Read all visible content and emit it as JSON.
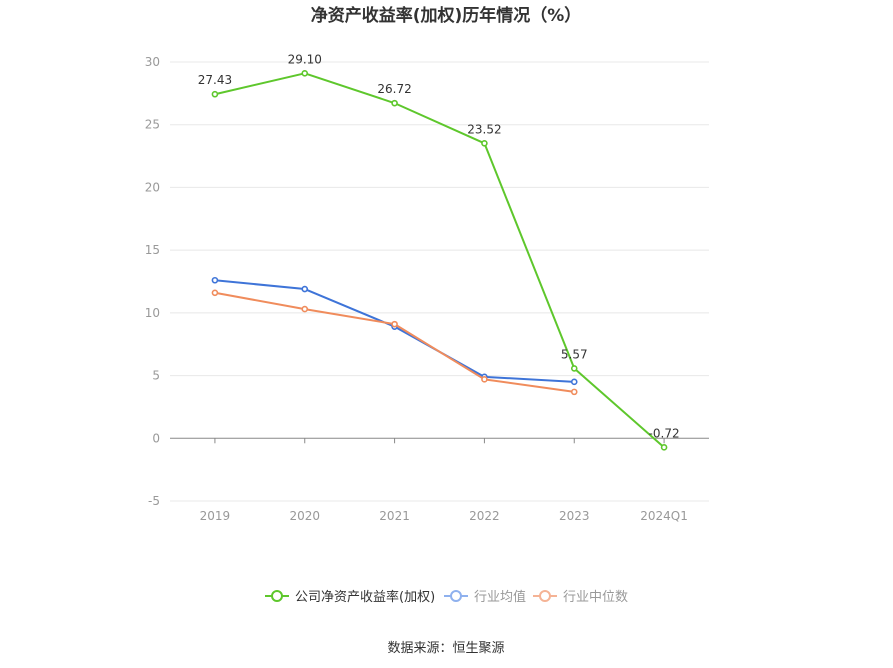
{
  "chart_data": {
    "type": "line",
    "title": "净资产收益率(加权)历年情况（%）",
    "categories": [
      "2019",
      "2020",
      "2021",
      "2022",
      "2023",
      "2024Q1"
    ],
    "ylim": [
      -5,
      30
    ],
    "yticks": [
      -5,
      0,
      5,
      10,
      15,
      20,
      25,
      30
    ],
    "grid": true,
    "legend_position": "bottom",
    "series": [
      {
        "name": "公司净资产收益率(加权)",
        "color": "#5ec72c",
        "values": [
          27.43,
          29.1,
          26.72,
          23.52,
          5.57,
          -0.72
        ],
        "labels": [
          "27.43",
          "29.10",
          "26.72",
          "23.52",
          "5.57",
          "-0.72"
        ]
      },
      {
        "name": "行业均值",
        "color": "#3e74d8",
        "values": [
          12.6,
          11.9,
          8.9,
          4.9,
          4.5,
          null
        ]
      },
      {
        "name": "行业中位数",
        "color": "#f08c5c",
        "values": [
          11.6,
          10.3,
          9.1,
          4.7,
          3.7,
          null
        ]
      }
    ]
  },
  "legend_colors": [
    "#5ec72c",
    "#8fb1ee",
    "#f5b395"
  ],
  "source": "数据来源：恒生聚源"
}
